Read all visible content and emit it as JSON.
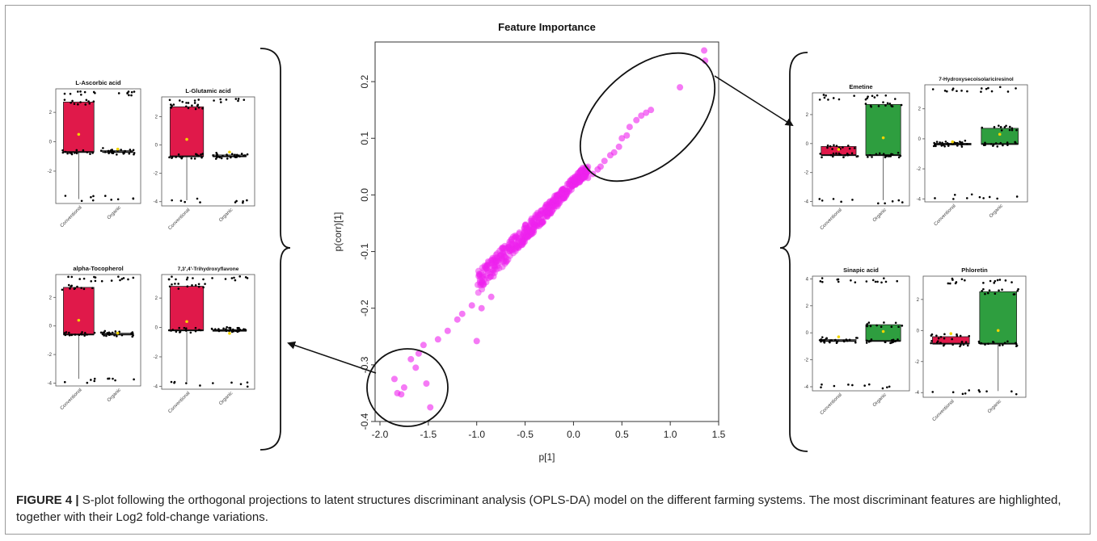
{
  "caption": {
    "label": "FIGURE 4 |",
    "text": " S-plot following the orthogonal projections to latent structures discriminant analysis (OPLS-DA) model on the different farming systems. The most discriminant features are highlighted, together with their Log2 fold-change variations."
  },
  "colors": {
    "points": "#ee22ee",
    "conventional": "#e0194a",
    "organic": "#2e9e3f",
    "mean": "#f2d500"
  },
  "chart_data": [
    {
      "type": "scatter",
      "title": "Feature Importance",
      "xlabel": "p[1]",
      "ylabel": "p(corr)[1]",
      "xlim": [
        -2.05,
        1.5
      ],
      "ylim": [
        -0.4,
        0.27
      ],
      "x_ticks": [
        "-2.0",
        "-1.5",
        "-1.0",
        "-0.5",
        "0.0",
        "0.5",
        "1.0",
        "1.5"
      ],
      "y_ticks": [
        "-0.4",
        "-0.3",
        "-0.2",
        "-0.1",
        "0.0",
        "0.1",
        "0.2"
      ],
      "points": [
        [
          1.35,
          0.255
        ],
        [
          1.36,
          0.237
        ],
        [
          1.1,
          0.19
        ],
        [
          0.8,
          0.15
        ],
        [
          0.75,
          0.145
        ],
        [
          0.7,
          0.14
        ],
        [
          0.65,
          0.132
        ],
        [
          0.58,
          0.12
        ],
        [
          0.55,
          0.105
        ],
        [
          0.5,
          0.1
        ],
        [
          0.47,
          0.085
        ],
        [
          0.42,
          0.075
        ],
        [
          0.38,
          0.07
        ],
        [
          0.32,
          0.06
        ],
        [
          0.28,
          0.05
        ],
        [
          0.25,
          0.045
        ],
        [
          0.2,
          0.037
        ],
        [
          0.15,
          0.03
        ],
        [
          -1.82,
          -0.35
        ],
        [
          -1.78,
          -0.352
        ],
        [
          -1.85,
          -0.325
        ],
        [
          -1.75,
          -0.34
        ],
        [
          -1.52,
          -0.333
        ],
        [
          -1.48,
          -0.375
        ],
        [
          -1.63,
          -0.305
        ],
        [
          -1.55,
          -0.265
        ],
        [
          -1.68,
          -0.29
        ],
        [
          -1.6,
          -0.28
        ],
        [
          -1.4,
          -0.255
        ],
        [
          -1.3,
          -0.24
        ],
        [
          -1.2,
          -0.22
        ],
        [
          -1.0,
          -0.258
        ],
        [
          -0.95,
          -0.2
        ],
        [
          -0.85,
          -0.18
        ],
        [
          -1.15,
          -0.21
        ],
        [
          -1.05,
          -0.195
        ]
      ],
      "annotations": [
        "top-right ellipse",
        "bottom-left ellipse"
      ]
    },
    {
      "type": "box",
      "title": "L-Ascorbic acid",
      "categories": [
        "Conventional",
        "Organic"
      ],
      "ylim": [
        -4.2,
        3.6
      ],
      "y_ticks": [
        "2",
        "0",
        "-2"
      ],
      "boxes": [
        {
          "q1": -0.7,
          "median": -0.7,
          "q3": 2.7,
          "low": -3.9,
          "high": 2.7,
          "mean": 0.5,
          "color": "conventional"
        },
        {
          "q1": -0.7,
          "median": -0.7,
          "q3": -0.6,
          "low": -0.7,
          "high": -0.6,
          "mean": -0.5,
          "color": "none"
        }
      ]
    },
    {
      "type": "box",
      "title": "L-Glutamic acid",
      "categories": [
        "Conventional",
        "Organic"
      ],
      "ylim": [
        -4.3,
        3.4
      ],
      "y_ticks": [
        "2",
        "0",
        "-2",
        "-4"
      ],
      "boxes": [
        {
          "q1": -0.8,
          "median": -0.8,
          "q3": 2.7,
          "low": -3.9,
          "high": 2.7,
          "mean": 0.4,
          "color": "conventional"
        },
        {
          "q1": -0.8,
          "median": -0.8,
          "q3": -0.7,
          "low": -0.8,
          "high": -0.7,
          "mean": -0.5,
          "color": "none"
        }
      ]
    },
    {
      "type": "box",
      "title": "alpha-Tocopherol",
      "categories": [
        "Conventional",
        "Organic"
      ],
      "ylim": [
        -4.2,
        3.6
      ],
      "y_ticks": [
        "2",
        "0",
        "-2",
        "-4"
      ],
      "boxes": [
        {
          "q1": -0.6,
          "median": -0.6,
          "q3": 2.7,
          "low": -3.7,
          "high": 2.7,
          "mean": 0.4,
          "color": "conventional"
        },
        {
          "q1": -0.6,
          "median": -0.6,
          "q3": -0.5,
          "low": -0.6,
          "high": -0.5,
          "mean": -0.5,
          "color": "none"
        }
      ]
    },
    {
      "type": "box",
      "title": "7,3',4'-Trihydroxyflavone",
      "categories": [
        "Conventional",
        "Organic"
      ],
      "ylim": [
        -4.2,
        3.6
      ],
      "y_ticks": [
        "2",
        "0",
        "-2",
        "-4"
      ],
      "boxes": [
        {
          "q1": -0.2,
          "median": -0.2,
          "q3": 2.8,
          "low": -3.7,
          "high": 2.8,
          "mean": 0.4,
          "color": "conventional"
        },
        {
          "q1": -0.2,
          "median": -0.2,
          "q3": -0.15,
          "low": -0.2,
          "high": -0.15,
          "mean": -0.4,
          "color": "none"
        }
      ]
    },
    {
      "type": "box",
      "title": "Emetine",
      "categories": [
        "Conventional",
        "Organic"
      ],
      "ylim": [
        -4.3,
        3.5
      ],
      "y_ticks": [
        "2",
        "0",
        "-2",
        "-4"
      ],
      "boxes": [
        {
          "q1": -0.8,
          "median": -0.8,
          "q3": -0.2,
          "low": -0.8,
          "high": -0.2,
          "mean": -0.4,
          "color": "conventional"
        },
        {
          "q1": -0.8,
          "median": -0.8,
          "q3": 2.7,
          "low": -3.9,
          "high": 2.7,
          "mean": 0.4,
          "color": "organic"
        }
      ]
    },
    {
      "type": "box",
      "title": "7-Hydroxysecoisolariciresinol",
      "categories": [
        "Conventional",
        "Organic"
      ],
      "ylim": [
        -4.2,
        3.6
      ],
      "y_ticks": [
        "2",
        "0",
        "-2",
        "-4"
      ],
      "boxes": [
        {
          "q1": -0.35,
          "median": -0.35,
          "q3": -0.3,
          "low": -0.35,
          "high": -0.3,
          "mean": -0.2,
          "color": "none"
        },
        {
          "q1": -0.35,
          "median": -0.35,
          "q3": 0.7,
          "low": -0.35,
          "high": 0.7,
          "mean": 0.3,
          "color": "organic"
        }
      ]
    },
    {
      "type": "box",
      "title": "Sinapic acid",
      "categories": [
        "Conventional",
        "Organic"
      ],
      "ylim": [
        -4.3,
        4.2
      ],
      "y_ticks": [
        "4",
        "2",
        "0",
        "-2",
        "-4"
      ],
      "boxes": [
        {
          "q1": -0.6,
          "median": -0.6,
          "q3": -0.5,
          "low": -0.6,
          "high": -0.5,
          "mean": -0.3,
          "color": "none"
        },
        {
          "q1": -0.6,
          "median": -0.6,
          "q3": 0.6,
          "low": -0.6,
          "high": 0.6,
          "mean": 0.1,
          "color": "organic"
        }
      ]
    },
    {
      "type": "box",
      "title": "Phloretin",
      "categories": [
        "Conventional",
        "Organic"
      ],
      "ylim": [
        -4.3,
        3.5
      ],
      "y_ticks": [
        "2",
        "0",
        "-2",
        "-4"
      ],
      "boxes": [
        {
          "q1": -0.85,
          "median": -0.85,
          "q3": -0.4,
          "low": -0.85,
          "high": -0.4,
          "mean": -0.2,
          "color": "conventional"
        },
        {
          "q1": -0.85,
          "median": -0.85,
          "q3": 2.5,
          "low": -3.9,
          "high": 2.5,
          "mean": 0.0,
          "color": "organic"
        }
      ]
    }
  ]
}
